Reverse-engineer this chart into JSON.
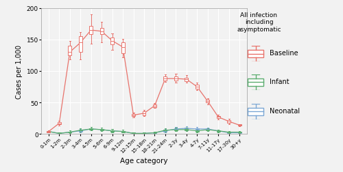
{
  "age_categories": [
    "0-1m",
    "1-2m",
    "2-3m",
    "3-4m",
    "4-5m",
    "5-6m",
    "6-9m",
    "9-12m",
    "12-15m",
    "15-18m",
    "18-21m",
    "21-24m",
    "2-3y",
    "3-4y",
    "4-7y",
    "7-11y",
    "11-17y",
    "17-30y",
    "30+y"
  ],
  "baseline": {
    "median": [
      4,
      17,
      130,
      145,
      165,
      163,
      148,
      138,
      30,
      33,
      45,
      88,
      88,
      87,
      75,
      52,
      27,
      20,
      14
    ],
    "q1": [
      3,
      15,
      125,
      130,
      158,
      158,
      142,
      128,
      28,
      30,
      43,
      85,
      85,
      84,
      72,
      50,
      25,
      18,
      13
    ],
    "q3": [
      5,
      19,
      140,
      155,
      172,
      168,
      153,
      145,
      32,
      36,
      47,
      91,
      91,
      89,
      78,
      54,
      29,
      22,
      15
    ],
    "whislo": [
      2,
      13,
      118,
      118,
      143,
      145,
      134,
      122,
      26,
      28,
      41,
      83,
      82,
      82,
      70,
      47,
      23,
      16,
      12
    ],
    "whishi": [
      6,
      21,
      148,
      162,
      190,
      178,
      160,
      151,
      34,
      38,
      49,
      95,
      96,
      93,
      82,
      57,
      31,
      24,
      16
    ]
  },
  "infant": {
    "median": [
      4,
      1,
      3,
      6,
      8,
      7,
      5,
      4,
      1,
      1,
      2,
      6,
      7,
      7,
      5,
      7,
      5,
      3,
      3
    ],
    "q1": [
      3,
      1,
      2,
      5,
      7,
      6,
      4,
      3,
      1,
      1,
      2,
      5,
      6,
      6,
      4,
      6,
      4,
      2,
      2
    ],
    "q3": [
      5,
      2,
      4,
      7,
      9,
      8,
      6,
      5,
      2,
      2,
      3,
      7,
      8,
      8,
      6,
      8,
      6,
      4,
      4
    ],
    "whislo": [
      2,
      0,
      1,
      4,
      6,
      5,
      3,
      2,
      0,
      0,
      1,
      4,
      5,
      5,
      3,
      5,
      3,
      1,
      1
    ],
    "whishi": [
      6,
      3,
      6,
      9,
      11,
      10,
      8,
      7,
      3,
      3,
      4,
      9,
      10,
      10,
      8,
      9,
      7,
      5,
      5
    ]
  },
  "neonatal": {
    "median": [
      4,
      1,
      3,
      5,
      8,
      7,
      5,
      4,
      1,
      1,
      2,
      5,
      8,
      9,
      8,
      8,
      5,
      2,
      2
    ],
    "q1": [
      3,
      1,
      2,
      4,
      7,
      6,
      4,
      3,
      1,
      1,
      1,
      4,
      7,
      8,
      7,
      7,
      4,
      1,
      1
    ],
    "q3": [
      5,
      2,
      4,
      6,
      9,
      8,
      6,
      5,
      2,
      2,
      3,
      6,
      9,
      10,
      9,
      9,
      6,
      3,
      3
    ],
    "whislo": [
      2,
      0,
      1,
      3,
      6,
      5,
      3,
      2,
      0,
      0,
      1,
      3,
      6,
      7,
      6,
      6,
      3,
      1,
      1
    ],
    "whishi": [
      6,
      3,
      6,
      8,
      11,
      10,
      8,
      7,
      3,
      3,
      4,
      8,
      11,
      12,
      11,
      10,
      7,
      4,
      4
    ]
  },
  "baseline_color": "#E8736C",
  "infant_color": "#5BAD6F",
  "neonatal_color": "#7BA7D4",
  "bg_color": "#F2F2F2",
  "grid_color": "#FFFFFF",
  "ylabel": "Cases per 1,000",
  "xlabel": "Age category",
  "legend_title": "All infection\nincluding\nasymptomatic",
  "ylim": [
    0,
    200
  ],
  "yticks": [
    0,
    50,
    100,
    150,
    200
  ]
}
